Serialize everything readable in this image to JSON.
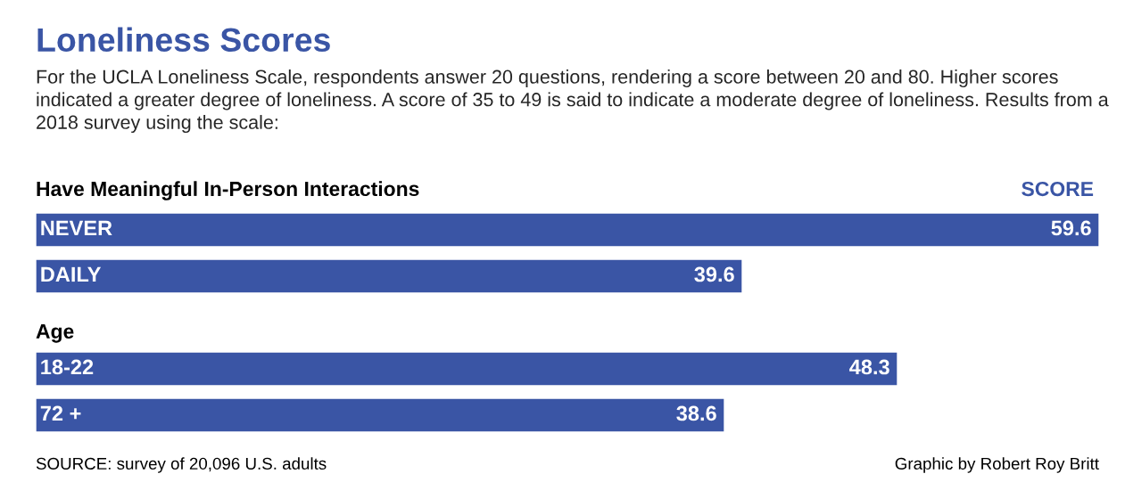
{
  "chart_data": {
    "type": "bar",
    "orientation": "horizontal",
    "title": "Loneliness Scores",
    "subtitle": "For the UCLA Loneliness Scale, respondents answer 20 questions, rendering a score between 20 and 80. Higher scores indicated a greater degree of loneliness. A score of 35 to 49 is said to indicate a moderate degree of loneliness. Results from a 2018 survey using the scale:",
    "categories": [
      "NEVER",
      "DAILY",
      "18-22",
      "72 +"
    ],
    "values": [
      59.6,
      39.6,
      48.3,
      38.6
    ],
    "color": "#3a55a5",
    "data_labels": true,
    "annotations": [
      "Have Meaningful In-Person Interactions",
      "SCORE",
      "Age",
      "SOURCE: survey of 20,096 U.S. adults",
      "Graphic by Robert Roy Britt"
    ]
  }
}
